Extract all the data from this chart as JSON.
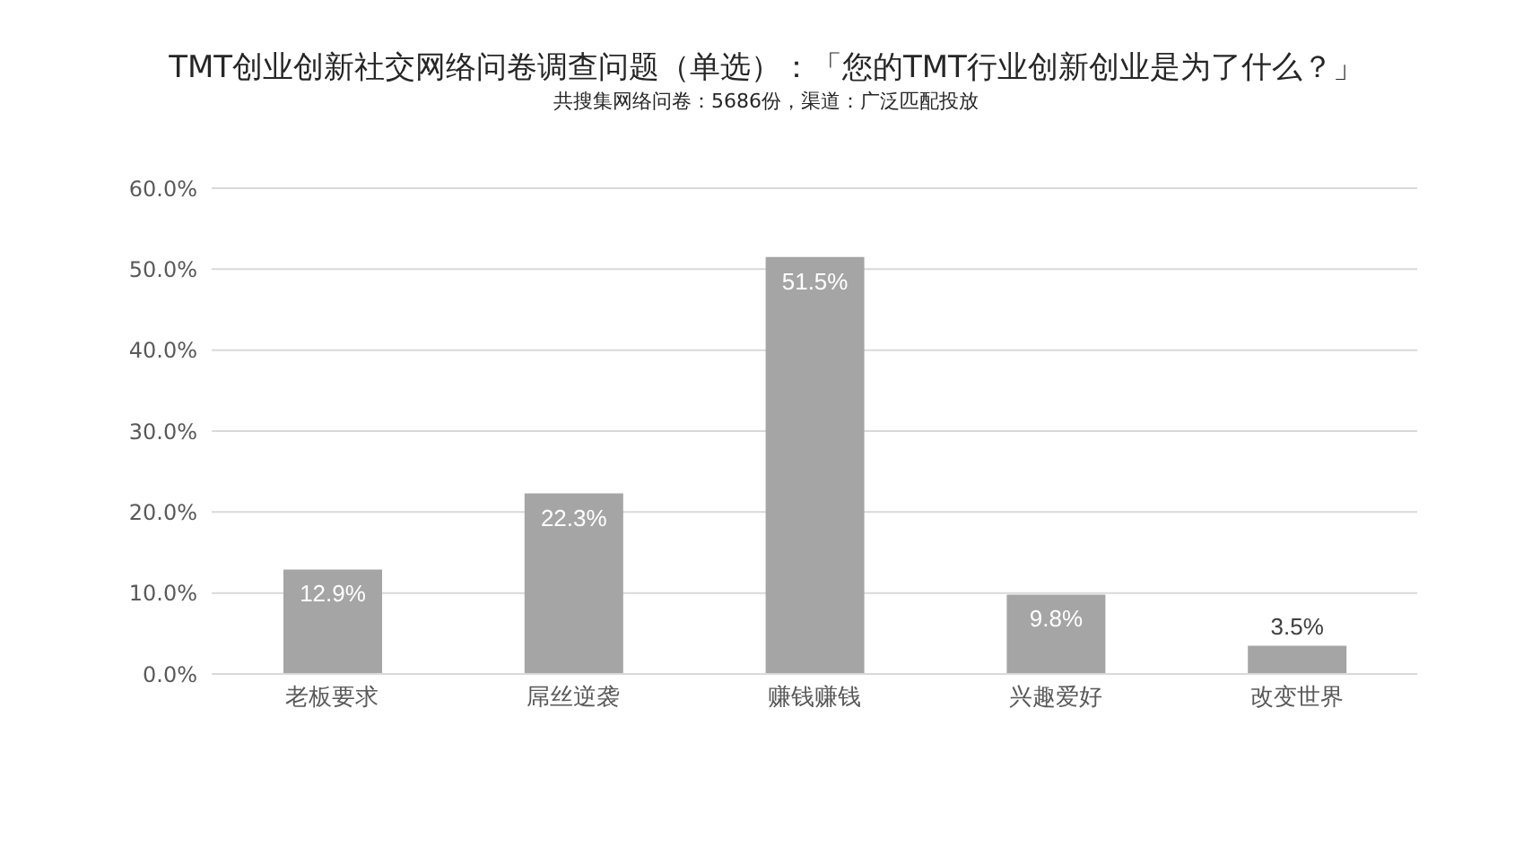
{
  "chart_data": {
    "type": "bar",
    "title": "TMT创业创新社交网络问卷调查问题（单选）：「您的TMT行业创新创业是为了什么？」",
    "subtitle": "共搜集网络问卷：5686份，渠道：广泛匹配投放",
    "categories": [
      "老板要求",
      "屌丝逆袭",
      "赚钱赚钱",
      "兴趣爱好",
      "改变世界"
    ],
    "values": [
      12.9,
      22.3,
      51.5,
      9.8,
      3.5
    ],
    "color": "#a5a5a5",
    "value_labels": [
      "12.9%",
      "22.3%",
      "51.5%",
      "9.8%",
      "3.5%"
    ],
    "ylim": [
      0,
      60
    ],
    "yticks": [
      {
        "value": 0,
        "label": "0.0%"
      },
      {
        "value": 10,
        "label": "10.0%"
      },
      {
        "value": 20,
        "label": "20.0%"
      },
      {
        "value": 30,
        "label": "30.0%"
      },
      {
        "value": 40,
        "label": "40.0%"
      },
      {
        "value": 50,
        "label": "50.0%"
      },
      {
        "value": 60,
        "label": "60.0%"
      }
    ],
    "grid": "y",
    "legend": false
  }
}
